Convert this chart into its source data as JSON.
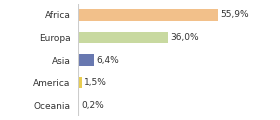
{
  "categories": [
    "Africa",
    "Europa",
    "Asia",
    "America",
    "Oceania"
  ],
  "values": [
    55.9,
    36.0,
    6.4,
    1.5,
    0.2
  ],
  "labels": [
    "55,9%",
    "36,0%",
    "6,4%",
    "1,5%",
    "0,2%"
  ],
  "bar_colors": [
    "#f2c08a",
    "#c8d9a0",
    "#6878b0",
    "#e8cc50",
    "#a0c8c0"
  ],
  "background_color": "#ffffff",
  "xlim": [
    0,
    75
  ],
  "bar_height": 0.5,
  "label_fontsize": 6.5,
  "tick_fontsize": 6.5
}
